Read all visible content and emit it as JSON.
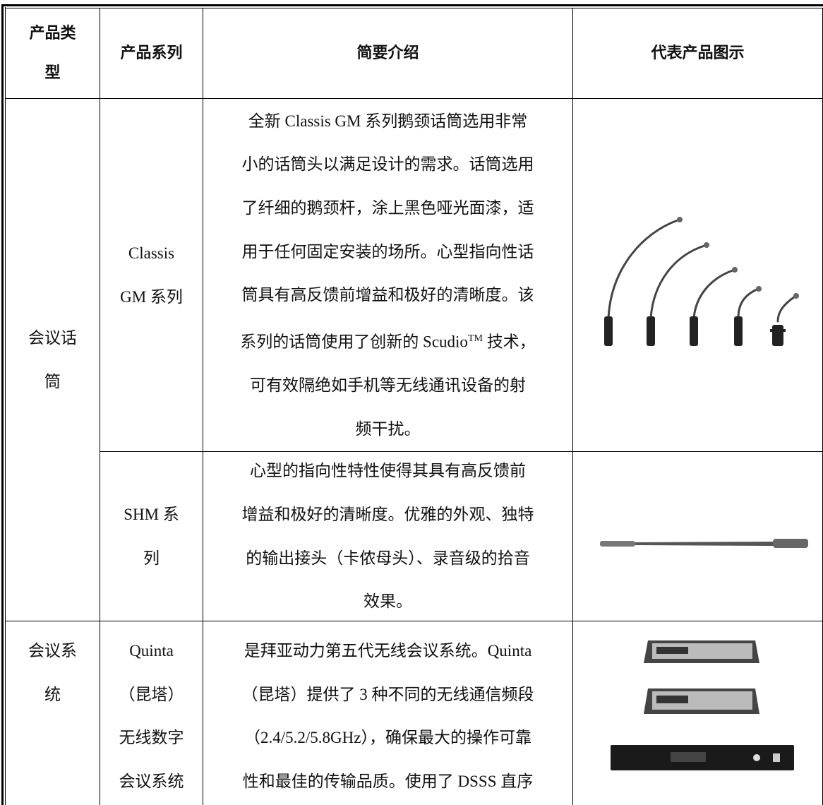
{
  "table": {
    "header": [
      [
        "产品类",
        "型"
      ],
      [
        "产品系列"
      ],
      [
        "简要介绍"
      ],
      [
        "代表产品图示"
      ]
    ],
    "rows": [
      {
        "type": [
          "会议话",
          "筒"
        ],
        "series": [
          "Classis",
          "GM 系列"
        ],
        "description": [
          "全新 Classis GM 系列鹅颈话筒选用非常",
          "小的话筒头以满足设计的需求。话筒选用",
          "了纤细的鹅颈杆，涂上黑色哑光面漆，适",
          "用于任何固定安装的场所。心型指向性话",
          "筒具有高反馈前增益和极好的清晰度。该",
          {
            "text": "系列的话筒使用了创新的 Scudio",
            "sup": "TM",
            "tail": " 技术，"
          },
          "可有效隔绝如手机等无线通讯设备的射",
          "频干扰。"
        ]
      },
      {
        "series": [
          "SHM 系",
          "列"
        ],
        "description": [
          "心型的指向性特性使得其具有高反馈前",
          "增益和极好的清晰度。优雅的外观、独特",
          "的输出接头（卡侬母头）、录音级的拾音",
          "效果。"
        ]
      },
      {
        "type": [
          "会议系",
          "统"
        ],
        "series": [
          "Quinta",
          "（昆塔）",
          "无线数字",
          "会议系统"
        ],
        "description": [
          "是拜亚动力第五代无线会议系统。Quinta",
          "（昆塔）提供了 3 种不同的无线通信频段",
          "（2.4/5.2/5.8GHz），确保最大的操作可靠",
          "性和最佳的传输品质。使用了 DSSS 直序"
        ]
      }
    ]
  }
}
